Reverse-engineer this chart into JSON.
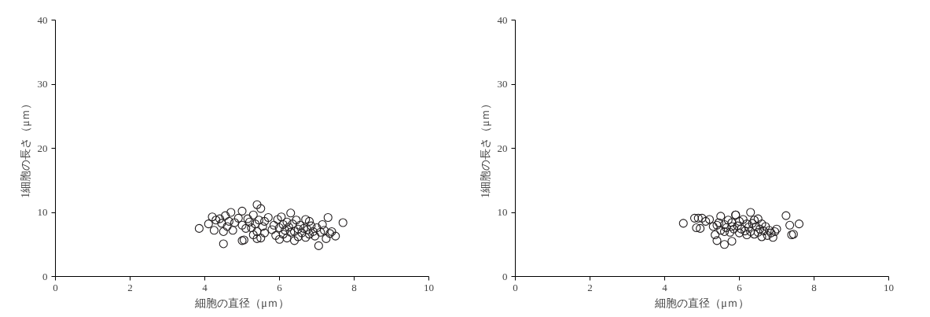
{
  "chart_data": [
    {
      "type": "scatter",
      "xlabel": "細胞の直径（μｍ）",
      "ylabel": "1細胞の長さ（μｍ）",
      "xlim": [
        0,
        10
      ],
      "ylim": [
        0,
        40
      ],
      "xticks": [
        0,
        2,
        4,
        6,
        8,
        10
      ],
      "yticks": [
        0,
        10,
        20,
        30,
        40
      ],
      "grid": false,
      "marker": "circle",
      "series": [
        {
          "color": "#231f20",
          "x": [
            3.85,
            4.1,
            4.2,
            4.25,
            4.3,
            4.4,
            4.45,
            4.5,
            4.55,
            4.6,
            4.65,
            4.7,
            4.75,
            4.8,
            4.9,
            5.0,
            5.0,
            5.05,
            5.1,
            5.15,
            5.2,
            5.25,
            5.3,
            5.3,
            5.35,
            5.4,
            5.4,
            5.45,
            5.5,
            5.5,
            5.55,
            5.6,
            5.6,
            5.7,
            5.8,
            5.85,
            5.9,
            5.95,
            6.0,
            6.0,
            6.05,
            6.1,
            6.1,
            6.15,
            6.2,
            6.2,
            6.25,
            6.3,
            6.3,
            6.35,
            6.4,
            6.4,
            6.45,
            6.5,
            6.5,
            6.55,
            6.6,
            6.65,
            6.7,
            6.7,
            6.75,
            6.8,
            6.8,
            6.85,
            6.9,
            6.95,
            7.0,
            7.05,
            7.1,
            7.15,
            7.2,
            7.25,
            7.3,
            7.35,
            7.4,
            7.5,
            7.7,
            4.5,
            5.0,
            5.4
          ],
          "values": [
            7.5,
            8.2,
            9.3,
            7.2,
            8.8,
            9.0,
            8.3,
            7.0,
            9.5,
            7.8,
            8.6,
            10.0,
            7.2,
            8.4,
            9.1,
            10.2,
            8.0,
            5.7,
            7.5,
            9.0,
            8.5,
            7.6,
            9.6,
            6.5,
            8.2,
            11.2,
            7.0,
            8.8,
            10.6,
            6.0,
            7.8,
            8.6,
            6.8,
            9.2,
            7.3,
            8.0,
            6.4,
            8.9,
            7.6,
            5.8,
            9.3,
            8.1,
            6.6,
            7.2,
            8.5,
            6.0,
            7.7,
            9.9,
            6.9,
            8.2,
            7.0,
            5.6,
            8.8,
            7.4,
            6.2,
            8.0,
            6.8,
            7.5,
            8.9,
            6.1,
            7.3,
            8.6,
            6.6,
            7.9,
            7.0,
            6.3,
            7.6,
            4.8,
            6.9,
            8.1,
            7.2,
            5.9,
            9.2,
            6.7,
            7.0,
            6.3,
            8.4,
            5.1,
            5.6,
            5.9
          ]
        }
      ]
    },
    {
      "type": "scatter",
      "xlabel": "細胞の直径（μｍ）",
      "ylabel": "1細胞の長さ（μｍ）",
      "xlim": [
        0,
        10
      ],
      "ylim": [
        0,
        40
      ],
      "xticks": [
        0,
        2,
        4,
        6,
        8,
        10
      ],
      "yticks": [
        0,
        10,
        20,
        30,
        40
      ],
      "grid": false,
      "marker": "circle",
      "series": [
        {
          "color": "#231f20",
          "x": [
            4.5,
            4.8,
            4.85,
            4.9,
            4.95,
            5.0,
            5.1,
            5.2,
            5.3,
            5.35,
            5.4,
            5.45,
            5.5,
            5.5,
            5.6,
            5.6,
            5.65,
            5.7,
            5.75,
            5.8,
            5.8,
            5.85,
            5.9,
            5.95,
            6.0,
            6.0,
            6.05,
            6.1,
            6.15,
            6.2,
            6.2,
            6.25,
            6.3,
            6.3,
            6.35,
            6.4,
            6.45,
            6.5,
            6.5,
            6.55,
            6.6,
            6.6,
            6.65,
            6.7,
            6.75,
            6.8,
            6.85,
            6.9,
            6.95,
            7.0,
            7.25,
            7.35,
            7.4,
            7.45,
            7.6,
            5.9,
            5.4,
            5.6,
            5.8,
            6.4
          ],
          "values": [
            8.3,
            9.1,
            7.6,
            9.1,
            7.5,
            9.1,
            8.6,
            8.9,
            7.8,
            6.5,
            5.6,
            8.4,
            9.4,
            7.2,
            8.1,
            5.0,
            7.6,
            8.8,
            6.9,
            8.4,
            5.5,
            7.4,
            9.6,
            7.9,
            8.6,
            6.8,
            7.4,
            8.9,
            7.1,
            8.2,
            6.5,
            7.7,
            10.0,
            7.0,
            8.3,
            6.6,
            7.8,
            9.0,
            6.9,
            7.4,
            8.2,
            6.2,
            7.1,
            7.8,
            6.4,
            7.2,
            6.8,
            6.1,
            7.0,
            7.4,
            9.5,
            8.0,
            6.5,
            6.6,
            8.2,
            9.6,
            8.0,
            7.0,
            7.8,
            8.8
          ]
        }
      ]
    }
  ]
}
